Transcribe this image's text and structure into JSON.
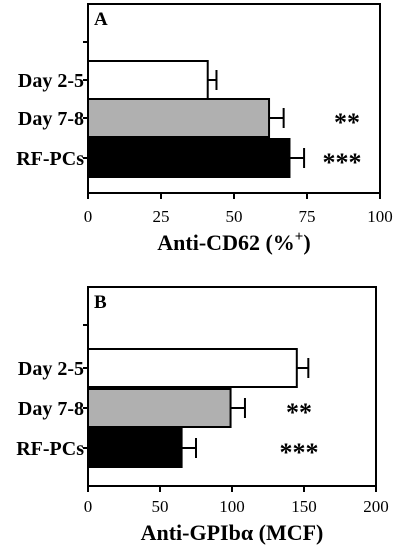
{
  "chart_data": [
    {
      "type": "bar",
      "orientation": "horizontal",
      "panel_label": "A",
      "categories": [
        "Day 2-5",
        "Day 7-8",
        "RF-PCs"
      ],
      "values": [
        41,
        62,
        69
      ],
      "errors": [
        3,
        5,
        5
      ],
      "significance": [
        "",
        "**",
        "***"
      ],
      "bar_colors": [
        "#ffffff",
        "#b0b0b0",
        "#000000"
      ],
      "xlabel_main": "Anti-CD62 (%",
      "xlabel_sup": "+",
      "xlabel_end": ")",
      "xlim": [
        0,
        100
      ],
      "xticks": [
        0,
        25,
        50,
        75,
        100
      ],
      "grid": false
    },
    {
      "type": "bar",
      "orientation": "horizontal",
      "panel_label": "B",
      "categories": [
        "Day 2-5",
        "Day 7-8",
        "RF-PCs"
      ],
      "values": [
        145,
        99,
        65
      ],
      "errors": [
        8,
        10,
        10
      ],
      "significance": [
        "",
        "**",
        "***"
      ],
      "bar_colors": [
        "#ffffff",
        "#b0b0b0",
        "#000000"
      ],
      "xlabel_main": "Anti-GPIbα (MCF)",
      "xlabel_sup": "",
      "xlabel_end": "",
      "xlim": [
        0,
        200
      ],
      "xticks": [
        0,
        50,
        100,
        150,
        200
      ],
      "grid": false
    }
  ]
}
